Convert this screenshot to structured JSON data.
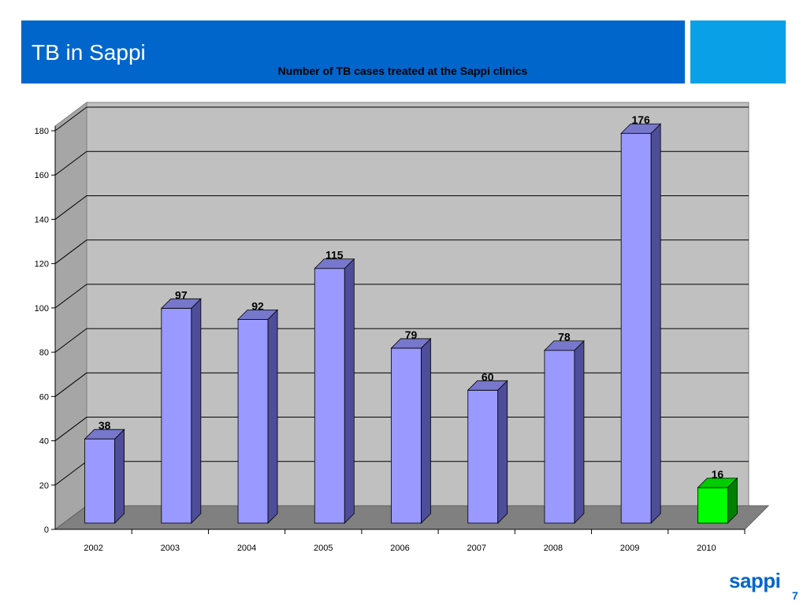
{
  "slide": {
    "title": "TB in Sappi",
    "brand": "sappi",
    "page_number": "7",
    "header_color": "#0066cc",
    "accent_color": "#0aa0e8"
  },
  "chart_data": {
    "type": "bar",
    "title": "Number of TB cases treated at the Sappi clinics",
    "xlabel": "",
    "ylabel": "",
    "categories": [
      "2002",
      "2003",
      "2004",
      "2005",
      "2006",
      "2007",
      "2008",
      "2009",
      "2010"
    ],
    "values": [
      38,
      97,
      92,
      115,
      79,
      60,
      78,
      176,
      16
    ],
    "data_labels": [
      "38",
      "97",
      "92",
      "115",
      "79",
      "60",
      "78",
      "176",
      "16"
    ],
    "highlight_index": 8,
    "bar_color": "#9999ff",
    "highlight_color": "#00ff00",
    "y_ticks": [
      "0",
      "20",
      "40",
      "60",
      "80",
      "100",
      "120",
      "140",
      "160",
      "180"
    ],
    "ylim": [
      0,
      180
    ],
    "grid": true,
    "style": "3d"
  }
}
